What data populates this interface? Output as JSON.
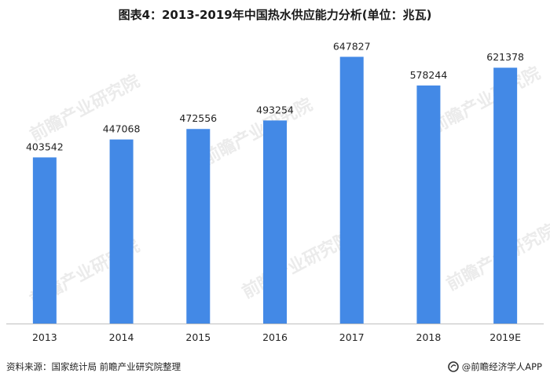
{
  "title": "图表4：2013-2019年中国热水供应能力分析(单位：兆瓦)",
  "footer": {
    "source": "资料来源：国家统计局 前瞻产业研究院整理",
    "brand": "@前瞻经济学人APP"
  },
  "watermark": "前瞻产业研究院",
  "colors": {
    "bar": "#4389e6",
    "axis": "#bfbfbf",
    "text": "#222222"
  },
  "chart_data": {
    "type": "bar",
    "title": "图表4：2013-2019年中国热水供应能力分析(单位：兆瓦)",
    "categories": [
      "2013",
      "2014",
      "2015",
      "2016",
      "2017",
      "2018",
      "2019E"
    ],
    "values": [
      403542,
      447068,
      472556,
      493254,
      647827,
      578244,
      621378
    ],
    "xlabel": "",
    "ylabel": "",
    "ylim": [
      0,
      700000
    ],
    "grid": false,
    "legend": "none",
    "data_labels": true
  }
}
